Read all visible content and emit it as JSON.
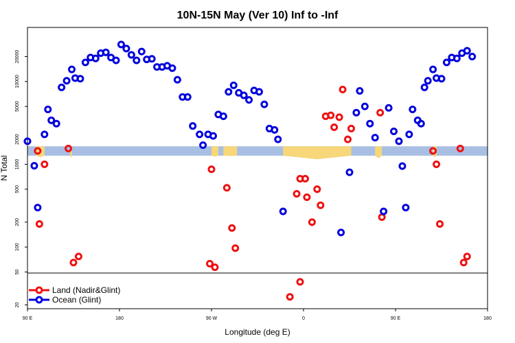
{
  "chart_data": {
    "type": "scatter",
    "title": "10N-15N May (Ver 10)   Inf to -Inf",
    "xlabel": "Longitude (deg E)",
    "ylabel": "N Total",
    "xlim": [
      -90,
      180
    ],
    "ylim_log": [
      18,
      45000
    ],
    "y_scale": "log",
    "x_ticks": [
      {
        "value": -90,
        "label": "90 E"
      },
      {
        "value": -36,
        "label": "180"
      },
      {
        "value": 18,
        "label": "90 W"
      },
      {
        "value": 72,
        "label": "0"
      },
      {
        "value": 126,
        "label": "90 E"
      },
      {
        "value": 180,
        "label": "180"
      }
    ],
    "y_ticks": [
      {
        "value": 20,
        "label": "20"
      },
      {
        "value": 50,
        "label": "50"
      },
      {
        "value": 100,
        "label": "100"
      },
      {
        "value": 200,
        "label": "200"
      },
      {
        "value": 500,
        "label": "500"
      },
      {
        "value": 1000,
        "label": "1000"
      },
      {
        "value": 2000,
        "label": "2000"
      },
      {
        "value": 5000,
        "label": "5000"
      },
      {
        "value": 10000,
        "label": "10000"
      },
      {
        "value": 20000,
        "label": "20000"
      }
    ],
    "legend_position": "bottom-left",
    "colors": {
      "land": "#ee1111",
      "ocean": "#0000dd",
      "map_ocean": "#a8bfe3",
      "map_land": "#f7d77a"
    },
    "series": [
      {
        "name": "Land (Nadir&Glint)",
        "color": "#ee1111",
        "points": [
          [
            -84,
            1450
          ],
          [
            -83,
            190
          ],
          [
            -80,
            1000
          ],
          [
            -66,
            1550
          ],
          [
            -63,
            65
          ],
          [
            -60,
            77
          ],
          [
            17,
            63
          ],
          [
            20,
            57
          ],
          [
            18,
            870
          ],
          [
            27,
            520
          ],
          [
            30,
            170
          ],
          [
            32,
            97
          ],
          [
            64,
            25
          ],
          [
            68,
            440
          ],
          [
            70,
            670
          ],
          [
            73,
            670
          ],
          [
            70,
            38
          ],
          [
            74,
            400
          ],
          [
            77,
            200
          ],
          [
            80,
            500
          ],
          [
            82,
            320
          ],
          [
            85,
            3800
          ],
          [
            88,
            3900
          ],
          [
            90,
            2800
          ],
          [
            93,
            3700
          ],
          [
            95,
            8000
          ],
          [
            98,
            2000
          ],
          [
            100,
            2700
          ],
          [
            117,
            4200
          ],
          [
            118,
            230
          ],
          [
            148,
            1450
          ],
          [
            150,
            1000
          ],
          [
            152,
            190
          ],
          [
            164,
            1550
          ],
          [
            166,
            65
          ],
          [
            168,
            77
          ]
        ]
      },
      {
        "name": "Ocean (Glint)",
        "color": "#0000dd",
        "points": [
          [
            -90,
            1900
          ],
          [
            -86,
            960
          ],
          [
            -84,
            300
          ],
          [
            -80,
            2300
          ],
          [
            -78,
            4600
          ],
          [
            -76,
            3400
          ],
          [
            -73,
            3100
          ],
          [
            -70,
            8500
          ],
          [
            -67,
            10200
          ],
          [
            -64,
            14000
          ],
          [
            -62,
            11000
          ],
          [
            -59,
            10800
          ],
          [
            -56,
            17000
          ],
          [
            -53,
            19500
          ],
          [
            -50,
            19000
          ],
          [
            -47,
            22000
          ],
          [
            -44,
            22500
          ],
          [
            -41,
            19500
          ],
          [
            -38,
            18000
          ],
          [
            -35,
            28000
          ],
          [
            -32,
            25000
          ],
          [
            -29,
            21000
          ],
          [
            -26,
            18000
          ],
          [
            -23,
            23000
          ],
          [
            -20,
            18500
          ],
          [
            -17,
            18800
          ],
          [
            -14,
            15000
          ],
          [
            -11,
            15000
          ],
          [
            -8,
            15500
          ],
          [
            -5,
            14500
          ],
          [
            -2,
            10500
          ],
          [
            1,
            6500
          ],
          [
            4,
            6500
          ],
          [
            7,
            2900
          ],
          [
            11,
            2300
          ],
          [
            13,
            1700
          ],
          [
            16,
            2300
          ],
          [
            19,
            2200
          ],
          [
            22,
            4000
          ],
          [
            25,
            3800
          ],
          [
            28,
            7500
          ],
          [
            31,
            9000
          ],
          [
            34,
            7300
          ],
          [
            37,
            6800
          ],
          [
            40,
            6000
          ],
          [
            43,
            7800
          ],
          [
            46,
            7500
          ],
          [
            49,
            5300
          ],
          [
            52,
            2700
          ],
          [
            55,
            2600
          ],
          [
            57,
            2000
          ],
          [
            60,
            270
          ],
          [
            94,
            150
          ],
          [
            99,
            800
          ],
          [
            103,
            4200
          ],
          [
            105,
            7700
          ],
          [
            108,
            5000
          ],
          [
            111,
            3100
          ],
          [
            114,
            2100
          ],
          [
            119,
            270
          ],
          [
            122,
            4800
          ],
          [
            125,
            2500
          ],
          [
            128,
            1900
          ],
          [
            130,
            950
          ],
          [
            132,
            300
          ],
          [
            134,
            2300
          ],
          [
            136,
            4600
          ],
          [
            139,
            3400
          ],
          [
            141,
            3100
          ],
          [
            143,
            8500
          ],
          [
            145,
            10200
          ],
          [
            148,
            14000
          ],
          [
            150,
            11000
          ],
          [
            153,
            10800
          ],
          [
            156,
            17000
          ],
          [
            159,
            19500
          ],
          [
            162,
            19000
          ],
          [
            165,
            22000
          ],
          [
            168,
            23500
          ],
          [
            171,
            20000
          ]
        ]
      }
    ],
    "map_strip": {
      "y_range": [
        1270,
        1650
      ],
      "land_segments": [
        {
          "x": [
            -85,
            -80
          ],
          "peak": 1220
        },
        {
          "x": [
            -65,
            -64
          ],
          "peak": 1200
        },
        {
          "x": [
            18,
            22
          ],
          "peak": 1240
        },
        {
          "x": [
            25,
            33
          ],
          "peak": 1260
        },
        {
          "x": [
            60,
            100
          ],
          "peak": 1150
        },
        {
          "x": [
            114,
            118
          ],
          "peak": 1180
        },
        {
          "x": [
            148,
            150
          ],
          "peak": 1220
        }
      ]
    }
  }
}
